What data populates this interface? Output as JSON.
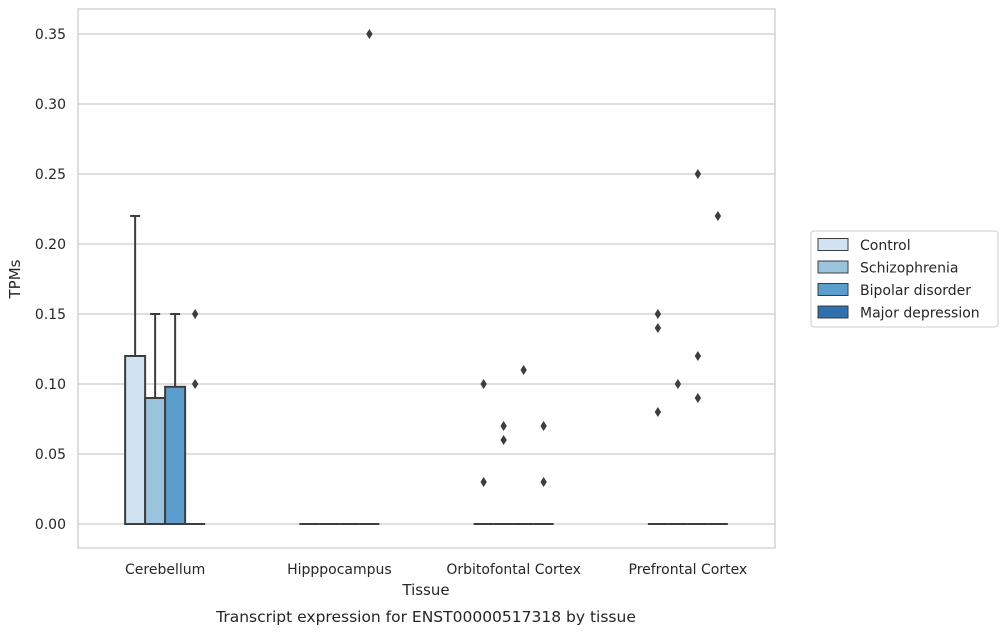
{
  "chart_data": {
    "type": "box",
    "xlabel": "Tissue",
    "ylabel": "TPMs",
    "caption": "Transcript expression for ENST00000517318 by tissue",
    "ylim": [
      -0.017,
      0.368
    ],
    "yticks": [
      0.0,
      0.05,
      0.1,
      0.15,
      0.2,
      0.25,
      0.3,
      0.35
    ],
    "ytick_labels": [
      "0.00",
      "0.05",
      "0.10",
      "0.15",
      "0.20",
      "0.25",
      "0.30",
      "0.35"
    ],
    "grid": "horizontal",
    "legend_position": "right",
    "categories": [
      "Cerebellum",
      "Hipppocampus",
      "Orbitofontal Cortex",
      "Prefrontal Cortex"
    ],
    "series": [
      {
        "name": "Control",
        "color": "#d1e2f2",
        "boxes": [
          {
            "q1": 0.0,
            "median": 0.0,
            "q3": 0.12,
            "whisker_low": 0.0,
            "whisker_high": 0.22,
            "outliers": []
          },
          {
            "q1": 0.0,
            "median": 0.0,
            "q3": 0.0,
            "whisker_low": 0.0,
            "whisker_high": 0.0,
            "outliers": []
          },
          {
            "q1": 0.0,
            "median": 0.0,
            "q3": 0.0,
            "whisker_low": 0.0,
            "whisker_high": 0.0,
            "outliers": [
              0.1,
              0.03
            ]
          },
          {
            "q1": 0.0,
            "median": 0.0,
            "q3": 0.0,
            "whisker_low": 0.0,
            "whisker_high": 0.0,
            "outliers": [
              0.15,
              0.14,
              0.08
            ]
          }
        ]
      },
      {
        "name": "Schizophrenia",
        "color": "#9ac3de",
        "boxes": [
          {
            "q1": 0.0,
            "median": 0.0,
            "q3": 0.09,
            "whisker_low": 0.0,
            "whisker_high": 0.15,
            "outliers": []
          },
          {
            "q1": 0.0,
            "median": 0.0,
            "q3": 0.0,
            "whisker_low": 0.0,
            "whisker_high": 0.0,
            "outliers": []
          },
          {
            "q1": 0.0,
            "median": 0.0,
            "q3": 0.0,
            "whisker_low": 0.0,
            "whisker_high": 0.0,
            "outliers": [
              0.07,
              0.06
            ]
          },
          {
            "q1": 0.0,
            "median": 0.0,
            "q3": 0.0,
            "whisker_low": 0.0,
            "whisker_high": 0.0,
            "outliers": [
              0.1
            ]
          }
        ]
      },
      {
        "name": "Bipolar disorder",
        "color": "#5a9ecd",
        "boxes": [
          {
            "q1": 0.0,
            "median": 0.0,
            "q3": 0.098,
            "whisker_low": 0.0,
            "whisker_high": 0.15,
            "outliers": []
          },
          {
            "q1": 0.0,
            "median": 0.0,
            "q3": 0.0,
            "whisker_low": 0.0,
            "whisker_high": 0.0,
            "outliers": []
          },
          {
            "q1": 0.0,
            "median": 0.0,
            "q3": 0.0,
            "whisker_low": 0.0,
            "whisker_high": 0.0,
            "outliers": [
              0.11
            ]
          },
          {
            "q1": 0.0,
            "median": 0.0,
            "q3": 0.0,
            "whisker_low": 0.0,
            "whisker_high": 0.0,
            "outliers": [
              0.25,
              0.12,
              0.09
            ]
          }
        ]
      },
      {
        "name": "Major depression",
        "color": "#2f70af",
        "boxes": [
          {
            "q1": 0.0,
            "median": 0.0,
            "q3": 0.0,
            "whisker_low": 0.0,
            "whisker_high": 0.0,
            "outliers": [
              0.15,
              0.1
            ]
          },
          {
            "q1": 0.0,
            "median": 0.0,
            "q3": 0.0,
            "whisker_low": 0.0,
            "whisker_high": 0.0,
            "outliers": [
              0.35
            ]
          },
          {
            "q1": 0.0,
            "median": 0.0,
            "q3": 0.0,
            "whisker_low": 0.0,
            "whisker_high": 0.0,
            "outliers": [
              0.07,
              0.03
            ]
          },
          {
            "q1": 0.0,
            "median": 0.0,
            "q3": 0.0,
            "whisker_low": 0.0,
            "whisker_high": 0.0,
            "outliers": [
              0.22
            ]
          }
        ]
      }
    ]
  },
  "colors": {
    "grid": "#cccccc",
    "frame": "#cccccc",
    "box_edge": "#3d3d3d",
    "text": "#262626"
  }
}
